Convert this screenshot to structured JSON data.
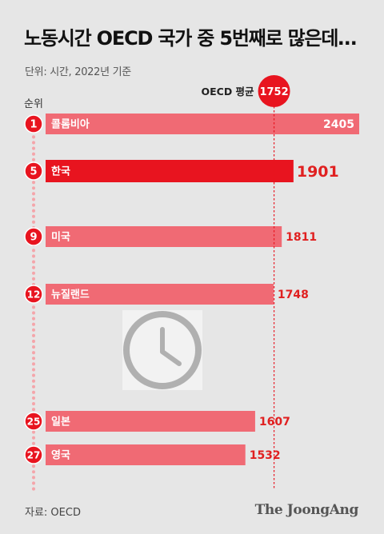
{
  "title": "노동시간 OECD 국가 중 5번째로 많은데…",
  "subtitle": "단위: 시간, 2022년 기준",
  "source": "자료: OECD",
  "brand": "The JoongAng",
  "colors": {
    "background": "#e6e6e6",
    "bar": "#f06a74",
    "bar_highlight": "#e8141f",
    "value_text": "#e02020",
    "reference_line": "#e8141f",
    "timeline_dots": "#f4a5aa"
  },
  "icons": [
    "clock-icon"
  ],
  "chart_data": {
    "type": "bar",
    "orientation": "horizontal",
    "rank_label": "순위",
    "categories": [
      "콜롬비아",
      "한국",
      "미국",
      "뉴질랜드",
      "일본",
      "영국"
    ],
    "ranks": [
      "1",
      "5",
      "9",
      "12",
      "25",
      "27"
    ],
    "values": [
      2405,
      1901,
      1811,
      1748,
      1607,
      1532
    ],
    "value_labels": [
      "2405",
      "1901",
      "1811",
      "1748",
      "1607",
      "1532"
    ],
    "highlight": "한국",
    "reference": {
      "label": "OECD 평균",
      "value": 1752,
      "value_label": "1752"
    },
    "xlim": [
      0,
      2405
    ]
  }
}
